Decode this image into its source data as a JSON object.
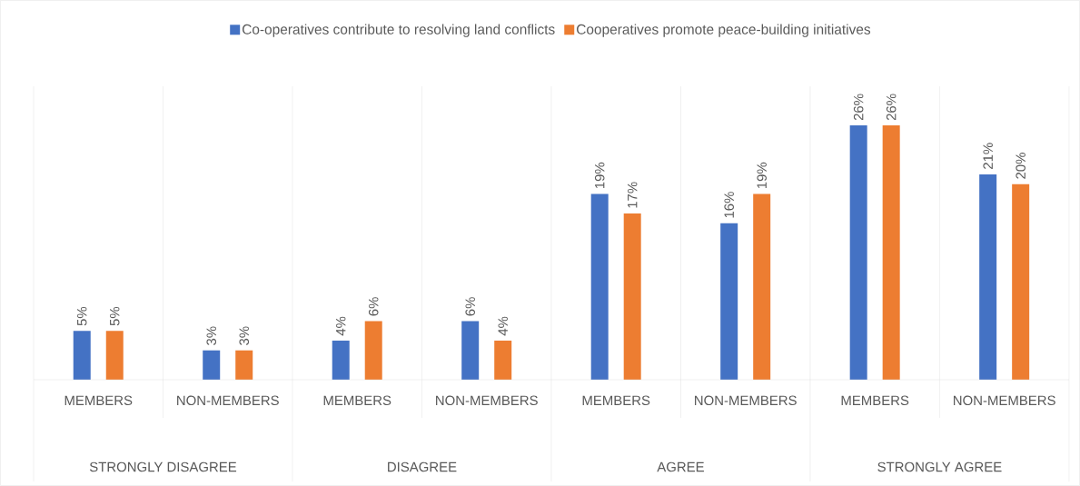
{
  "chart_data": {
    "type": "bar",
    "legend": "top",
    "categories": [
      "MEMBERS",
      "NON-MEMBERS",
      "MEMBERS",
      "NON-MEMBERS",
      "MEMBERS",
      "NON-MEMBERS",
      "MEMBERS",
      "NON-MEMBERS"
    ],
    "annotations": [
      "STRONGLY DISAGREE",
      "DISAGREE",
      "AGREE",
      "STRONGLY AGREE"
    ],
    "ylim": [
      0,
      30
    ],
    "series": [
      {
        "name": "Co-operatives contribute to resolving land conflicts",
        "color": "#4472c4",
        "values": [
          5,
          3,
          4,
          6,
          19,
          16,
          26,
          21
        ],
        "value_labels": [
          "5%",
          "3%",
          "4%",
          "6%",
          "19%",
          "16%",
          "26%",
          "21%"
        ]
      },
      {
        "name": "Cooperatives promote peace-building initiatives",
        "color": "#ed7d31",
        "values": [
          5,
          3,
          6,
          4,
          17,
          19,
          26,
          20
        ],
        "value_labels": [
          "5%",
          "3%",
          "6%",
          "4%",
          "17%",
          "19%",
          "26%",
          "20%"
        ]
      }
    ]
  }
}
